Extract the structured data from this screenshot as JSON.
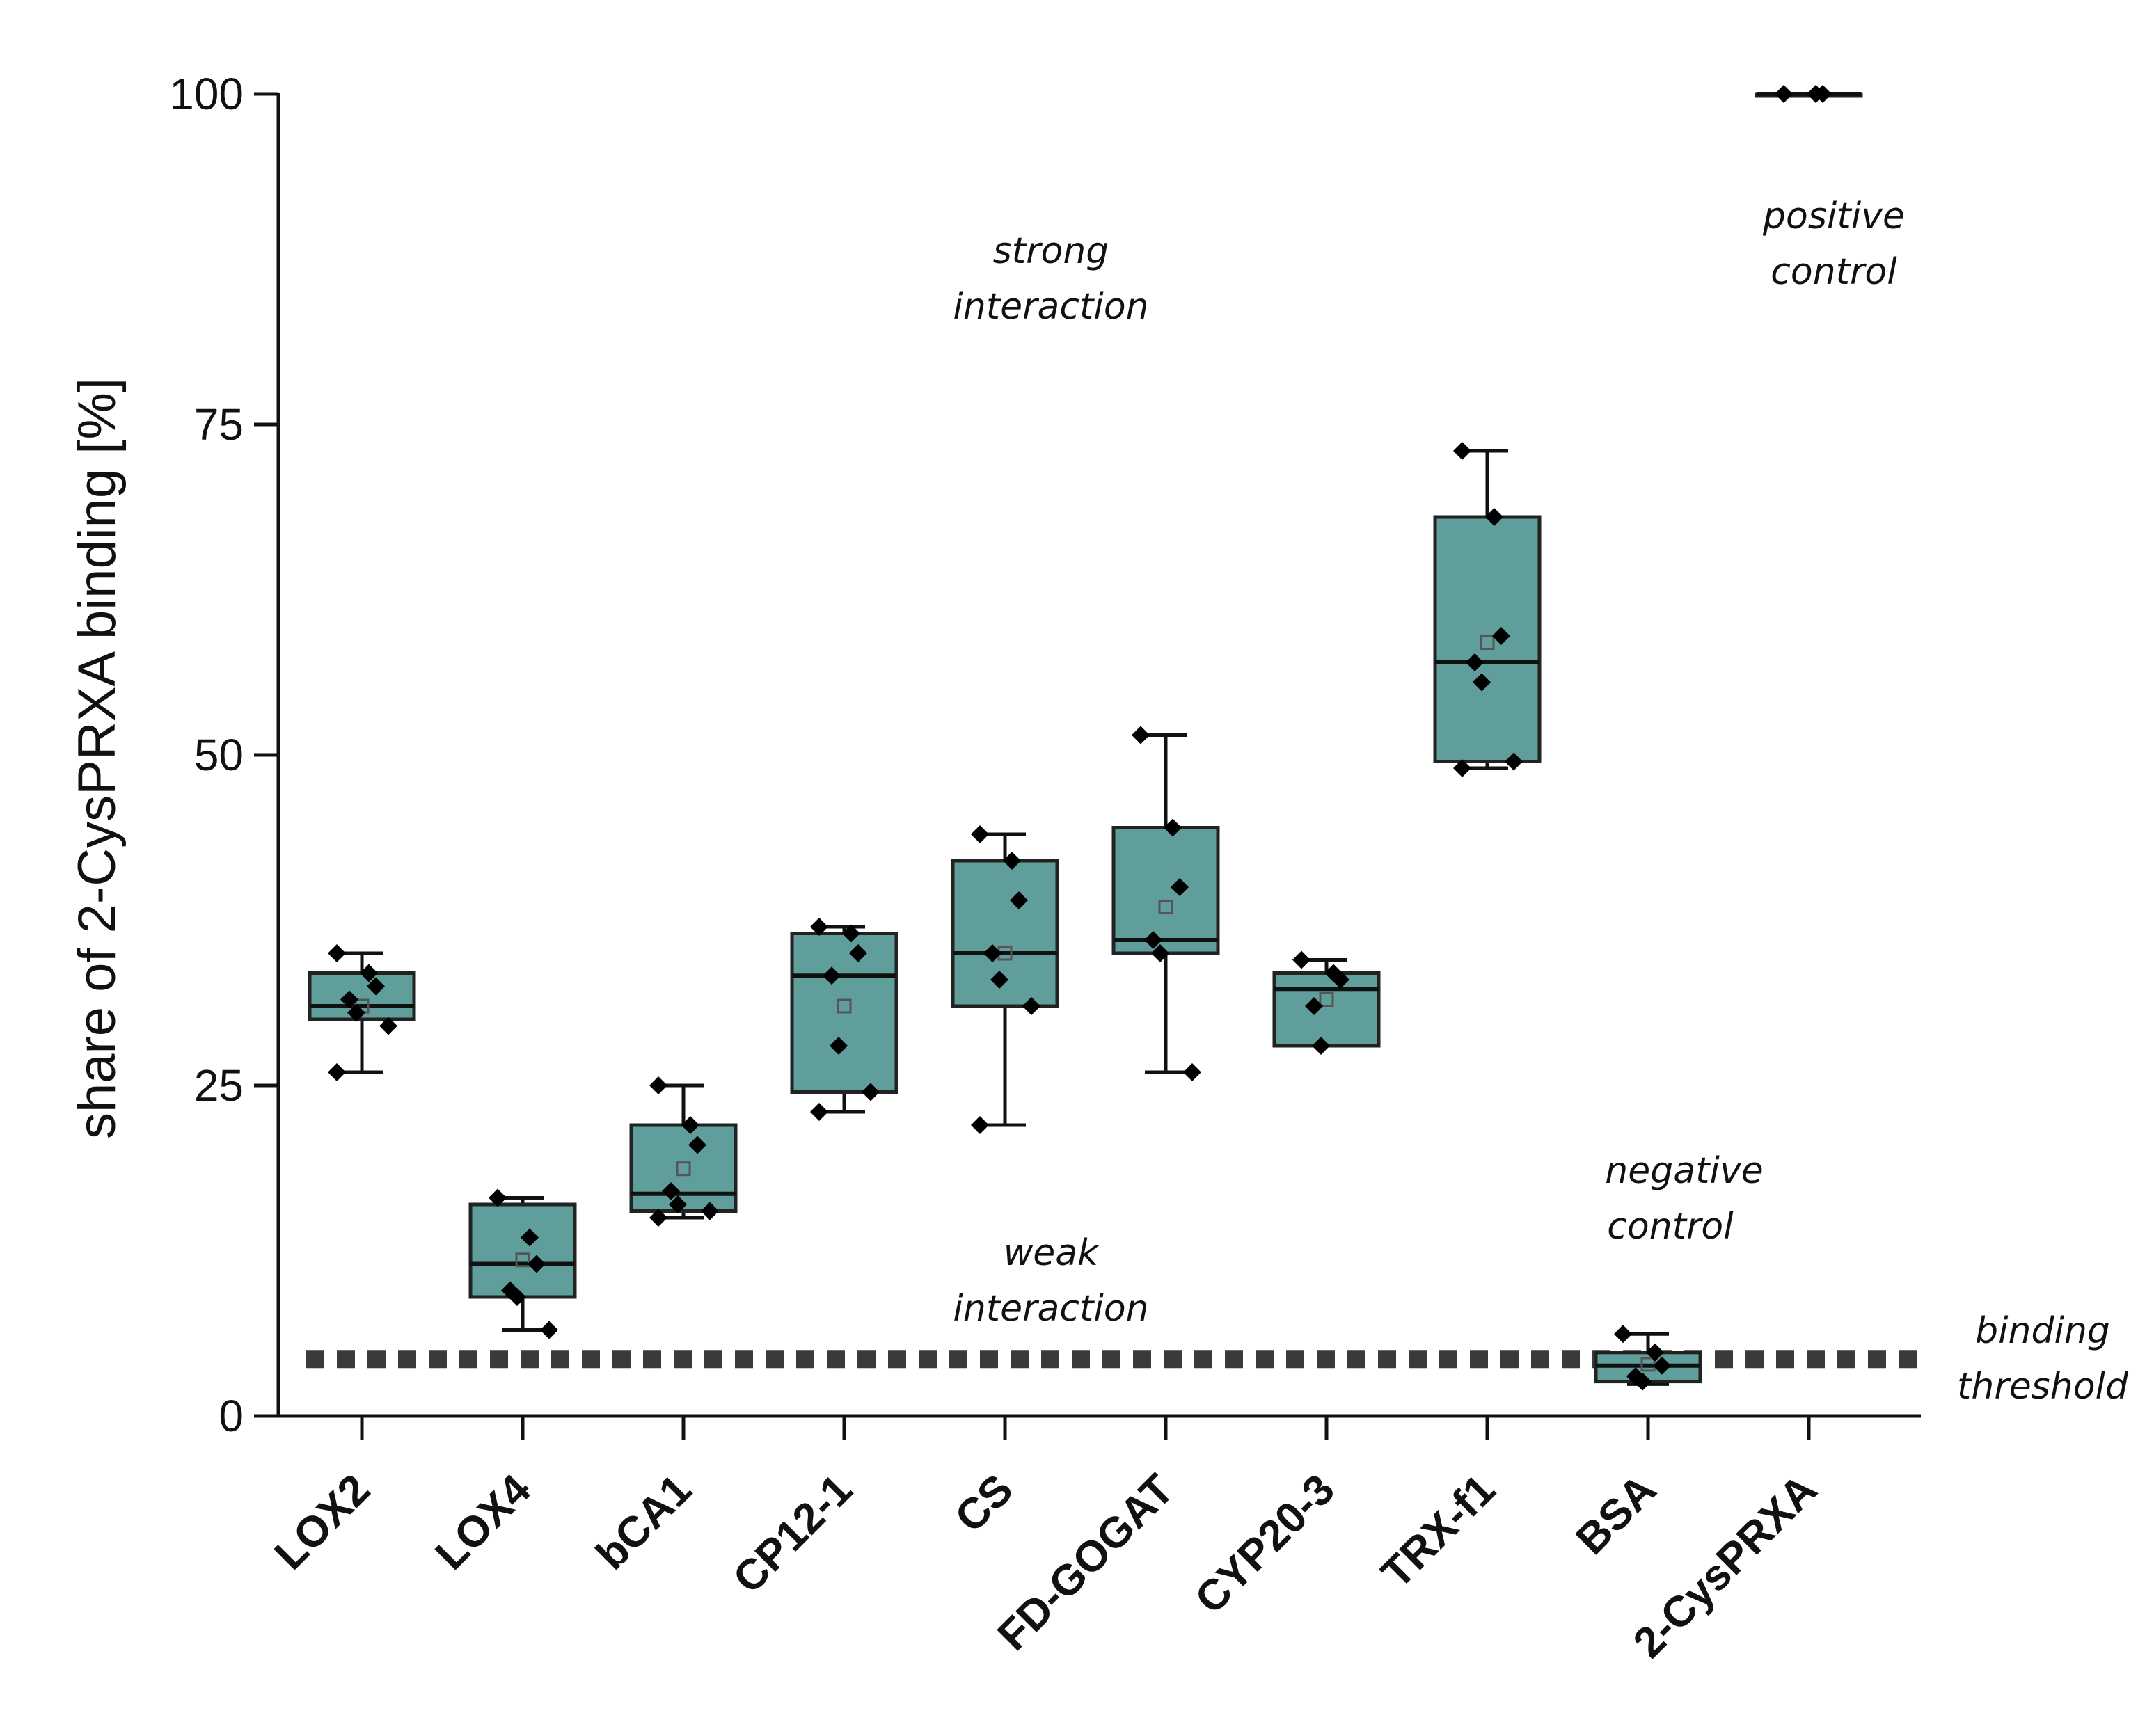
{
  "chart_data": {
    "type": "box",
    "ylabel": "share of 2-CysPRXA binding [%]",
    "xlabel": "",
    "ylim": [
      0,
      100
    ],
    "yticks": [
      0,
      25,
      50,
      75,
      100
    ],
    "categories": [
      "LOX2",
      "LOX4",
      "bCA1",
      "CP12-1",
      "CS",
      "FD-GOGAT",
      "CYP20-3",
      "TRX-f1",
      "BSA",
      "2-CysPRXA"
    ],
    "box_color": "#5f9e9a",
    "box_stroke": "#222222",
    "threshold_color": "#3a3a3a",
    "threshold": 4.3,
    "boxes": [
      {
        "name": "LOX2",
        "q1": 30,
        "median": 31,
        "q3": 33.5,
        "whisker_low": 26,
        "whisker_high": 35,
        "mean": 31,
        "points": [
          35,
          33.5,
          32.5,
          31.5,
          30.5,
          29.5,
          26
        ]
      },
      {
        "name": "LOX4",
        "q1": 9,
        "median": 11.5,
        "q3": 16,
        "whisker_low": 6.5,
        "whisker_high": 16.5,
        "mean": 11.8,
        "points": [
          16.5,
          13.5,
          11.5,
          9.5,
          9,
          6.5
        ]
      },
      {
        "name": "bCA1",
        "q1": 15.5,
        "median": 16.8,
        "q3": 22,
        "whisker_low": 15,
        "whisker_high": 25,
        "mean": 18.7,
        "points": [
          25,
          22,
          20.5,
          17,
          16,
          15.5,
          15
        ]
      },
      {
        "name": "CP12-1",
        "q1": 24.5,
        "median": 33.3,
        "q3": 36.5,
        "whisker_low": 23,
        "whisker_high": 37,
        "mean": 31,
        "points": [
          37,
          36.5,
          35,
          33.3,
          28,
          24.5,
          23
        ]
      },
      {
        "name": "CS",
        "q1": 31,
        "median": 35,
        "q3": 42,
        "whisker_low": 22,
        "whisker_high": 44,
        "mean": 35,
        "points": [
          44,
          42,
          39,
          35,
          33,
          31,
          22
        ]
      },
      {
        "name": "FD-GOGAT",
        "q1": 35,
        "median": 36,
        "q3": 44.5,
        "whisker_low": 26,
        "whisker_high": 51.5,
        "mean": 38.5,
        "points": [
          51.5,
          44.5,
          40,
          36,
          35,
          26
        ]
      },
      {
        "name": "CYP20-3",
        "q1": 28,
        "median": 32.3,
        "q3": 33.5,
        "whisker_low": 28,
        "whisker_high": 34.5,
        "mean": 31.5,
        "points": [
          34.5,
          33.5,
          33,
          31,
          28
        ]
      },
      {
        "name": "TRX-f1",
        "q1": 49.5,
        "median": 57,
        "q3": 68,
        "whisker_low": 49,
        "whisker_high": 73,
        "mean": 58.5,
        "points": [
          73,
          68,
          59,
          57,
          55.5,
          49.5,
          49
        ]
      },
      {
        "name": "BSA",
        "q1": 2.6,
        "median": 3.8,
        "q3": 4.8,
        "whisker_low": 2.4,
        "whisker_high": 6.2,
        "mean": 3.9,
        "points": [
          6.2,
          4.8,
          3.8,
          3,
          2.6
        ]
      },
      {
        "name": "2-CysPRXA",
        "q1": 100,
        "median": 100,
        "q3": 100,
        "whisker_low": 100,
        "whisker_high": 100,
        "mean": 100,
        "points": [
          100,
          100,
          100
        ]
      }
    ],
    "annotations": {
      "strong_1": "strong",
      "strong_2": "interaction",
      "weak_1": "weak",
      "weak_2": "interaction",
      "positive_1": "positive",
      "positive_2": "control",
      "negative_1": "negative",
      "negative_2": "control",
      "threshold_1": "binding",
      "threshold_2": "threshold"
    }
  }
}
